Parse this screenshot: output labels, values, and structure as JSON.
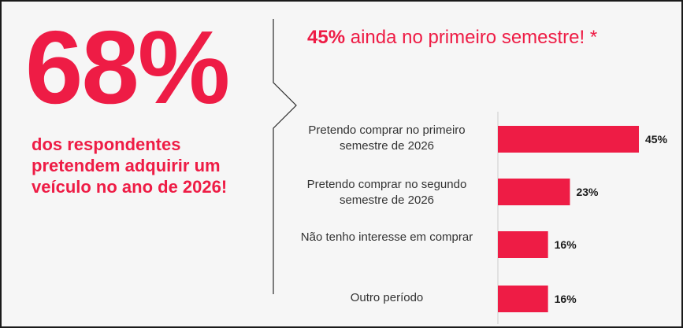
{
  "colors": {
    "accent": "#ee1c45",
    "text": "#333333",
    "dark": "#1a1a1a"
  },
  "left_panel": {
    "big_stat": "68%",
    "description": "dos respondentes pretendem adquirir um veículo no ano de 2026!"
  },
  "headline": {
    "highlight": "45%",
    "text": " ainda no primeiro semestre! *"
  },
  "chart_data": {
    "type": "bar",
    "orientation": "horizontal",
    "categories": [
      "Pretendo comprar no primeiro semestre de 2026",
      "Pretendo comprar no segundo semestre de 2026",
      "Não tenho interesse em comprar",
      "Outro período"
    ],
    "values": [
      45,
      23,
      16,
      16
    ],
    "value_labels": [
      "45%",
      "23%",
      "16%",
      "16%"
    ],
    "title": "",
    "xlabel": "",
    "ylabel": "",
    "xlim": [
      0,
      45
    ],
    "grid": false,
    "legend": "none"
  }
}
